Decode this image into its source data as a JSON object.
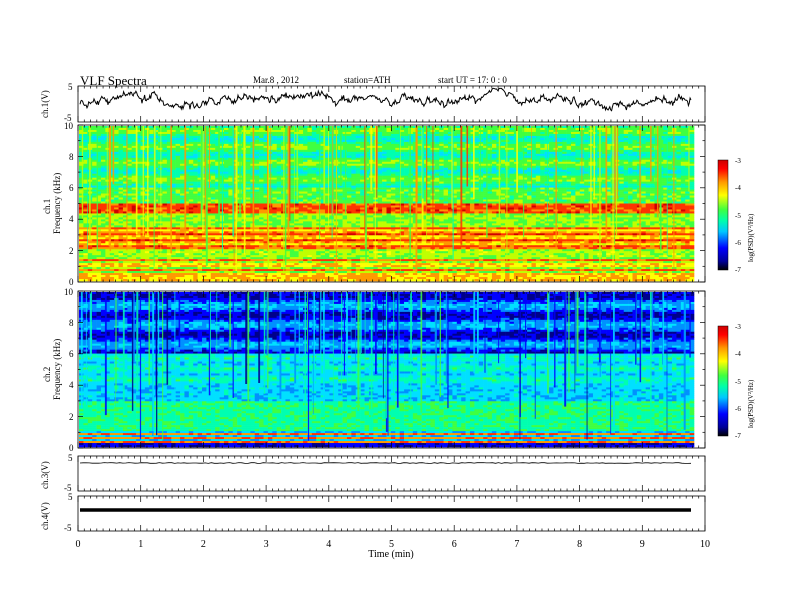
{
  "header": {
    "title": "VLF  Spectra",
    "date": "Mar.8  , 2012",
    "station": "station=ATH",
    "start_ut": "start  UT  =    17: 0  : 0"
  },
  "colors": {
    "background": "#ffffff",
    "trace": "#000000",
    "colormap": [
      "#000066",
      "#0000ff",
      "#00b0ff",
      "#00ffff",
      "#40ff40",
      "#ffff00",
      "#ff9900",
      "#ff0000",
      "#cc0000"
    ]
  },
  "chart_data": [
    {
      "type": "line",
      "panel": "ch.1",
      "ylabel": "ch.1(V)",
      "ylim": [
        -5,
        5
      ],
      "y_ticks": [
        "5",
        "-5"
      ],
      "xlim": [
        0,
        10
      ],
      "series": [
        {
          "description": "noisy waveform oscillating roughly between -2 and 4 V"
        }
      ]
    },
    {
      "type": "heatmap",
      "panel": "ch.1",
      "ylabel": "ch.1\nFrequency  (kHz)",
      "ylim": [
        0,
        10
      ],
      "y_ticks": [
        "0",
        "2",
        "4",
        "6",
        "8",
        "10"
      ],
      "xlim": [
        0,
        9.8
      ],
      "colorbar": {
        "label": "log(PSD)(V²/Hz)",
        "range": [
          -7,
          -3
        ],
        "ticks": [
          "-3",
          "-4",
          "-5",
          "-6",
          "-7"
        ]
      },
      "dominant_features": [
        {
          "band_khz": [
            0,
            1.5
          ],
          "level": "high (red/yellow)"
        },
        {
          "band_khz": [
            2,
            3.5
          ],
          "level": "high (red/orange)"
        },
        {
          "band_khz": [
            4.5,
            5
          ],
          "level": "high (red)"
        },
        {
          "band_khz": [
            6,
            10
          ],
          "level": "mid (green/cyan) with vertical sferic streaks"
        }
      ]
    },
    {
      "type": "heatmap",
      "panel": "ch.2",
      "ylabel": "ch.2\nFrequency  (kHz)",
      "ylim": [
        0,
        10
      ],
      "y_ticks": [
        "0",
        "2",
        "4",
        "6",
        "8",
        "10"
      ],
      "xlim": [
        0,
        9.8
      ],
      "colorbar": {
        "label": "log(PSD)(V²/Hz)",
        "range": [
          -7,
          -3
        ],
        "ticks": [
          "-3",
          "-4",
          "-5",
          "-6",
          "-7"
        ]
      },
      "dominant_features": [
        {
          "band_khz": [
            0,
            1
          ],
          "level": "high (red lines)"
        },
        {
          "band_khz": [
            1,
            6
          ],
          "level": "mid (cyan/green)"
        },
        {
          "band_khz": [
            6,
            10
          ],
          "level": "low (blue/black) with vertical sferic streaks"
        }
      ]
    },
    {
      "type": "line",
      "panel": "ch.3",
      "ylabel": "ch.3(V)",
      "ylim": [
        -5,
        5
      ],
      "y_ticks": [
        "5",
        "-5"
      ],
      "xlim": [
        0,
        10
      ],
      "series": [
        {
          "description": "flat trace near +3 V",
          "level": 3
        }
      ]
    },
    {
      "type": "line",
      "panel": "ch.4",
      "ylabel": "ch.4(V)",
      "ylim": [
        -5,
        5
      ],
      "y_ticks": [
        "5",
        "-5"
      ],
      "xlim": [
        0,
        10
      ],
      "series": [
        {
          "description": "thick flat trace near +1 V",
          "level": 1
        }
      ]
    }
  ],
  "x_axis": {
    "label": "Time  (min)",
    "ticks": [
      "0",
      "1",
      "2",
      "3",
      "4",
      "5",
      "6",
      "7",
      "8",
      "9",
      "10"
    ]
  },
  "panel_labels": {
    "ch1_trace": "ch.1(V)",
    "ch1_spec_a": "ch.1",
    "ch1_spec_b": "Frequency  (kHz)",
    "ch2_spec_a": "ch.2",
    "ch2_spec_b": "Frequency  (kHz)",
    "ch3_trace": "ch.3(V)",
    "ch4_trace": "ch.4(V)",
    "cbar_label": "log(PSD)(V²/Hz)"
  }
}
